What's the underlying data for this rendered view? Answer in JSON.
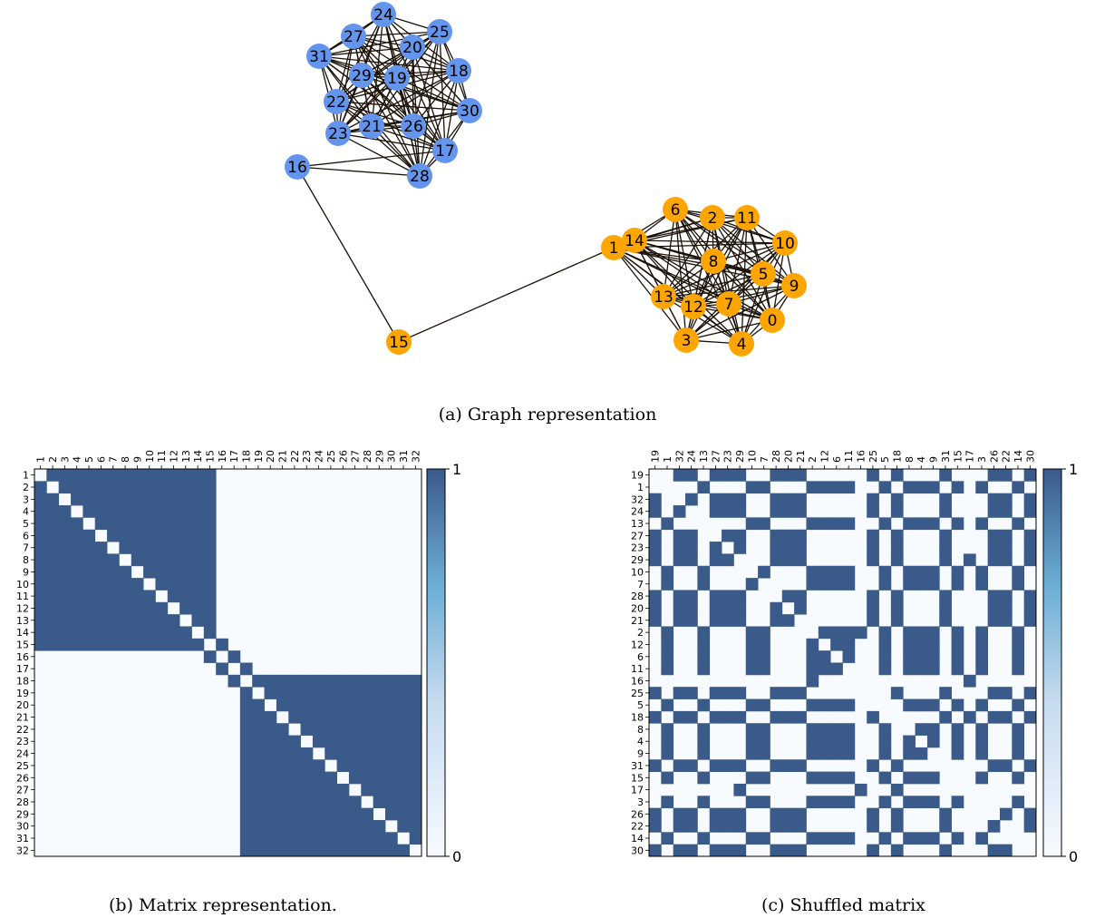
{
  "captions": {
    "a": "(a) Graph representation",
    "b": "(b) Matrix representation.",
    "c": "(c) Shuffled matrix"
  },
  "graph": {
    "blue_color": "#6495ED",
    "orange_color": "#FFA500",
    "edge_color": "#1a1006",
    "blue_nodes": [
      "16",
      "17",
      "18",
      "19",
      "20",
      "21",
      "22",
      "23",
      "24",
      "25",
      "26",
      "27",
      "28",
      "29",
      "30",
      "31"
    ],
    "orange_nodes": [
      "0",
      "1",
      "2",
      "3",
      "4",
      "5",
      "6",
      "7",
      "8",
      "9",
      "10",
      "11",
      "12",
      "13",
      "14",
      "15"
    ],
    "bridge_edges": [
      [
        "16",
        "15"
      ],
      [
        "15",
        "1"
      ],
      [
        "16",
        "17"
      ],
      [
        "16",
        "28"
      ]
    ]
  },
  "chart_data": [
    {
      "type": "heatmap",
      "title": "",
      "row_labels": [
        "1",
        "2",
        "3",
        "4",
        "5",
        "6",
        "7",
        "8",
        "9",
        "10",
        "11",
        "12",
        "13",
        "14",
        "15",
        "16",
        "17",
        "18",
        "19",
        "20",
        "21",
        "22",
        "23",
        "24",
        "25",
        "26",
        "27",
        "28",
        "29",
        "30",
        "31",
        "32"
      ],
      "col_labels": [
        "1",
        "2",
        "3",
        "4",
        "5",
        "6",
        "7",
        "8",
        "9",
        "10",
        "11",
        "12",
        "13",
        "14",
        "15",
        "16",
        "17",
        "18",
        "19",
        "20",
        "21",
        "22",
        "23",
        "24",
        "25",
        "26",
        "27",
        "28",
        "29",
        "30",
        "31",
        "32"
      ],
      "colorbar": {
        "min": 0,
        "max": 1,
        "tick_labels": [
          "0",
          "1"
        ],
        "low_color": "#f7fbff",
        "high_color": "#3a5a8a"
      },
      "values_description_free": true
    },
    {
      "type": "heatmap",
      "title": "",
      "row_labels": [
        "19",
        "1",
        "32",
        "24",
        "13",
        "27",
        "23",
        "29",
        "10",
        "7",
        "28",
        "20",
        "21",
        "2",
        "12",
        "6",
        "11",
        "16",
        "25",
        "5",
        "18",
        "8",
        "4",
        "9",
        "31",
        "15",
        "17",
        "3",
        "26",
        "22",
        "14",
        "30"
      ],
      "col_labels": [
        "19",
        "1",
        "32",
        "24",
        "13",
        "27",
        "23",
        "29",
        "10",
        "7",
        "28",
        "20",
        "21",
        "2",
        "12",
        "6",
        "11",
        "16",
        "25",
        "5",
        "18",
        "8",
        "4",
        "9",
        "31",
        "15",
        "17",
        "3",
        "26",
        "22",
        "14",
        "30"
      ],
      "colorbar": {
        "min": 0,
        "max": 1,
        "tick_labels": [
          "0",
          "1"
        ],
        "low_color": "#f7fbff",
        "high_color": "#3a5a8a"
      }
    }
  ]
}
